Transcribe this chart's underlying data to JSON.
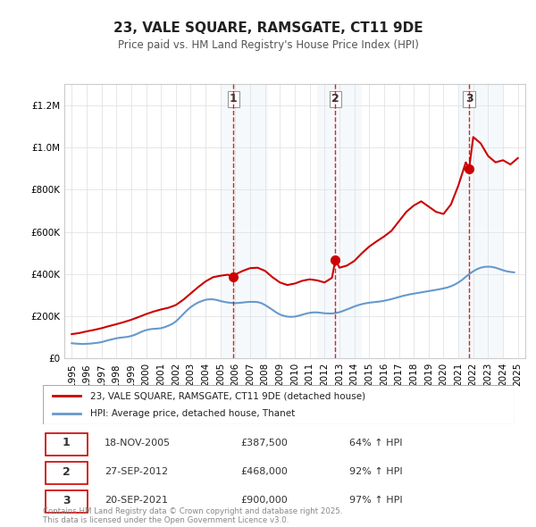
{
  "title": "23, VALE SQUARE, RAMSGATE, CT11 9DE",
  "subtitle": "Price paid vs. HM Land Registry's House Price Index (HPI)",
  "legend_line1": "23, VALE SQUARE, RAMSGATE, CT11 9DE (detached house)",
  "legend_line2": "HPI: Average price, detached house, Thanet",
  "footer": "Contains HM Land Registry data © Crown copyright and database right 2025.\nThis data is licensed under the Open Government Licence v3.0.",
  "sale_color": "#cc0000",
  "hpi_color": "#6699cc",
  "sale_marker_color": "#cc0000",
  "background_shading": "rgba(173,216,230,0.3)",
  "ylim": [
    0,
    1300000
  ],
  "transactions": [
    {
      "num": 1,
      "date": "18-NOV-2005",
      "price": 387500,
      "pct": "64%",
      "x": 2005.88
    },
    {
      "num": 2,
      "date": "27-SEP-2012",
      "price": 468000,
      "pct": "92%",
      "x": 2012.73
    },
    {
      "num": 3,
      "date": "20-SEP-2021",
      "price": 900000,
      "pct": "97%",
      "x": 2021.72
    }
  ],
  "hpi_data": {
    "years": [
      1995.0,
      1995.25,
      1995.5,
      1995.75,
      1996.0,
      1996.25,
      1996.5,
      1996.75,
      1997.0,
      1997.25,
      1997.5,
      1997.75,
      1998.0,
      1998.25,
      1998.5,
      1998.75,
      1999.0,
      1999.25,
      1999.5,
      1999.75,
      2000.0,
      2000.25,
      2000.5,
      2000.75,
      2001.0,
      2001.25,
      2001.5,
      2001.75,
      2002.0,
      2002.25,
      2002.5,
      2002.75,
      2003.0,
      2003.25,
      2003.5,
      2003.75,
      2004.0,
      2004.25,
      2004.5,
      2004.75,
      2005.0,
      2005.25,
      2005.5,
      2005.75,
      2006.0,
      2006.25,
      2006.5,
      2006.75,
      2007.0,
      2007.25,
      2007.5,
      2007.75,
      2008.0,
      2008.25,
      2008.5,
      2008.75,
      2009.0,
      2009.25,
      2009.5,
      2009.75,
      2010.0,
      2010.25,
      2010.5,
      2010.75,
      2011.0,
      2011.25,
      2011.5,
      2011.75,
      2012.0,
      2012.25,
      2012.5,
      2012.75,
      2013.0,
      2013.25,
      2013.5,
      2013.75,
      2014.0,
      2014.25,
      2014.5,
      2014.75,
      2015.0,
      2015.25,
      2015.5,
      2015.75,
      2016.0,
      2016.25,
      2016.5,
      2016.75,
      2017.0,
      2017.25,
      2017.5,
      2017.75,
      2018.0,
      2018.25,
      2018.5,
      2018.75,
      2019.0,
      2019.25,
      2019.5,
      2019.75,
      2020.0,
      2020.25,
      2020.5,
      2020.75,
      2021.0,
      2021.25,
      2021.5,
      2021.75,
      2022.0,
      2022.25,
      2022.5,
      2022.75,
      2023.0,
      2023.25,
      2023.5,
      2023.75,
      2024.0,
      2024.25,
      2024.5,
      2024.75
    ],
    "values": [
      72000,
      70000,
      69000,
      68000,
      69000,
      70000,
      72000,
      74000,
      77000,
      82000,
      87000,
      91000,
      95000,
      98000,
      100000,
      102000,
      106000,
      112000,
      120000,
      128000,
      134000,
      138000,
      140000,
      141000,
      143000,
      148000,
      155000,
      163000,
      175000,
      192000,
      210000,
      228000,
      243000,
      255000,
      265000,
      272000,
      278000,
      280000,
      280000,
      277000,
      272000,
      268000,
      265000,
      263000,
      262000,
      263000,
      265000,
      267000,
      268000,
      268000,
      267000,
      262000,
      253000,
      242000,
      230000,
      218000,
      208000,
      202000,
      198000,
      197000,
      198000,
      202000,
      207000,
      212000,
      216000,
      218000,
      218000,
      216000,
      214000,
      213000,
      213000,
      215000,
      219000,
      225000,
      232000,
      239000,
      246000,
      252000,
      257000,
      261000,
      264000,
      266000,
      268000,
      270000,
      273000,
      277000,
      281000,
      286000,
      291000,
      296000,
      300000,
      304000,
      307000,
      310000,
      313000,
      316000,
      319000,
      322000,
      325000,
      328000,
      332000,
      336000,
      342000,
      350000,
      360000,
      372000,
      387000,
      401000,
      413000,
      423000,
      430000,
      434000,
      435000,
      434000,
      430000,
      424000,
      418000,
      413000,
      410000,
      408000
    ]
  },
  "sale_data": {
    "years": [
      1995.0,
      1995.5,
      1996.0,
      1996.5,
      1997.0,
      1997.5,
      1998.0,
      1998.5,
      1999.0,
      1999.5,
      2000.0,
      2000.5,
      2001.0,
      2001.5,
      2002.0,
      2002.5,
      2003.0,
      2003.5,
      2004.0,
      2004.5,
      2005.0,
      2005.5,
      2005.88,
      2006.0,
      2006.5,
      2007.0,
      2007.5,
      2008.0,
      2008.5,
      2009.0,
      2009.5,
      2010.0,
      2010.5,
      2011.0,
      2011.5,
      2012.0,
      2012.5,
      2012.73,
      2013.0,
      2013.5,
      2014.0,
      2014.5,
      2015.0,
      2015.5,
      2016.0,
      2016.5,
      2017.0,
      2017.5,
      2018.0,
      2018.5,
      2019.0,
      2019.5,
      2020.0,
      2020.5,
      2021.0,
      2021.5,
      2021.72,
      2022.0,
      2022.5,
      2023.0,
      2023.5,
      2024.0,
      2024.5,
      2025.0
    ],
    "values": [
      115000,
      120000,
      128000,
      135000,
      143000,
      153000,
      162000,
      172000,
      183000,
      196000,
      210000,
      222000,
      232000,
      240000,
      253000,
      278000,
      308000,
      338000,
      365000,
      385000,
      392000,
      397000,
      387500,
      398000,
      415000,
      428000,
      430000,
      415000,
      385000,
      360000,
      348000,
      355000,
      368000,
      375000,
      370000,
      360000,
      382000,
      468000,
      430000,
      440000,
      462000,
      498000,
      530000,
      555000,
      578000,
      605000,
      650000,
      695000,
      725000,
      745000,
      720000,
      695000,
      685000,
      730000,
      820000,
      930000,
      900000,
      1050000,
      1020000,
      960000,
      930000,
      940000,
      920000,
      950000
    ]
  }
}
